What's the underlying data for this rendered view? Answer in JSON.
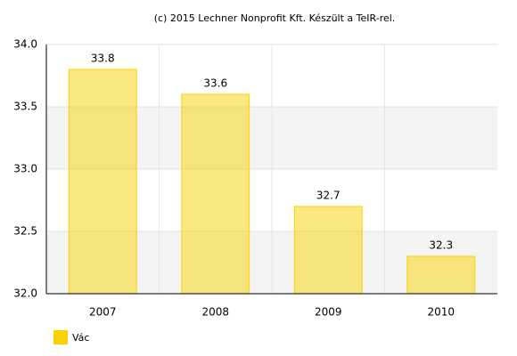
{
  "chart_data": {
    "type": "bar",
    "title": "(c) 2015 Lechner Nonprofit Kft. Készült a TeIR-rel.",
    "categories": [
      "2007",
      "2008",
      "2009",
      "2010"
    ],
    "series": [
      {
        "name": "Vác",
        "color": "#fad201",
        "values": [
          33.8,
          33.6,
          32.7,
          32.3
        ]
      }
    ],
    "ylim": [
      32,
      34
    ],
    "yticks": [
      {
        "value": 32,
        "label": "32.0"
      },
      32.5,
      {
        "value": 33,
        "label": "33.0"
      },
      33.5,
      {
        "value": 34,
        "label": "34.0"
      }
    ],
    "grid": true,
    "legend": "bottom-left"
  }
}
